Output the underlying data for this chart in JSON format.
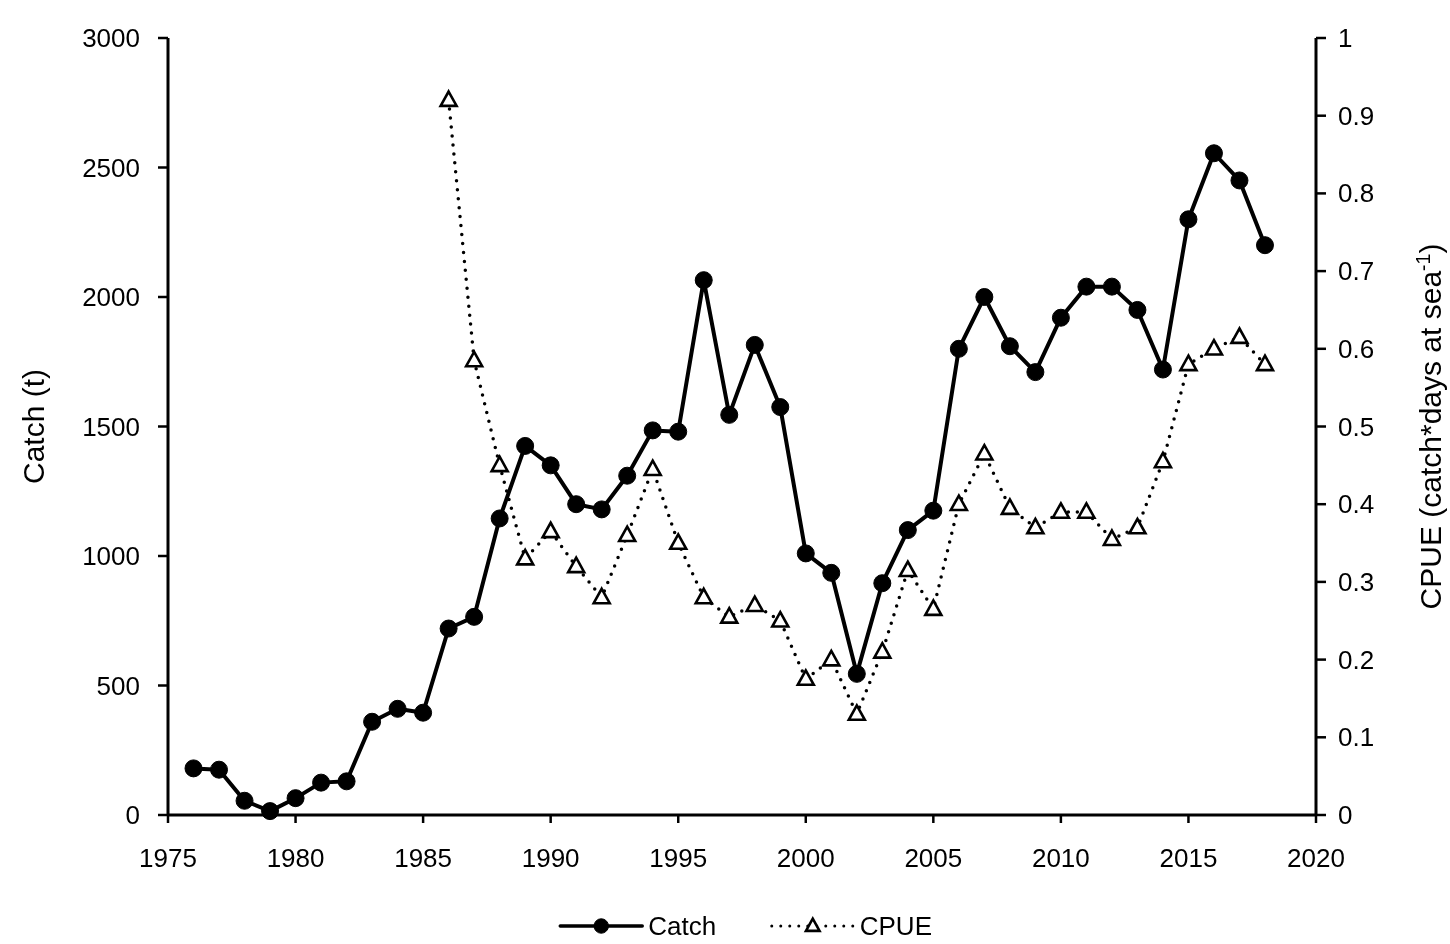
{
  "chart_data": {
    "type": "line",
    "ylabel": "Catch (t)",
    "y2label": "CPUE (catch*days at sea$^{-1}$)",
    "x": [
      1976,
      1977,
      1978,
      1979,
      1980,
      1981,
      1982,
      1983,
      1984,
      1985,
      1986,
      1987,
      1988,
      1989,
      1990,
      1991,
      1992,
      1993,
      1994,
      1995,
      1996,
      1997,
      1998,
      1999,
      2000,
      2001,
      2002,
      2003,
      2004,
      2005,
      2006,
      2007,
      2008,
      2009,
      2010,
      2011,
      2012,
      2013,
      2014,
      2015,
      2016,
      2017,
      2018
    ],
    "series": [
      {
        "name": "Catch",
        "color": "#000000",
        "marker": "circle",
        "line_style": "solid",
        "values": [
          180,
          175,
          55,
          15,
          65,
          125,
          130,
          360,
          410,
          395,
          720,
          765,
          1145,
          1425,
          1350,
          1200,
          1180,
          1310,
          1485,
          1480,
          2065,
          1545,
          1815,
          1575,
          1010,
          935,
          545,
          895,
          1100,
          1175,
          1800,
          2000,
          1810,
          1710,
          1920,
          2040,
          2040,
          1950,
          1720,
          2300,
          2555,
          2450,
          2200
        ]
      },
      {
        "name": "CPUE",
        "color": "#000000",
        "marker": "triangle",
        "line_style": "dotted",
        "axis": "y2",
        "values": [
          null,
          null,
          null,
          null,
          null,
          null,
          null,
          null,
          null,
          null,
          0.92,
          0.585,
          0.45,
          0.33,
          0.365,
          0.32,
          0.28,
          0.36,
          0.445,
          0.35,
          0.28,
          0.255,
          0.27,
          0.25,
          0.175,
          0.2,
          0.13,
          0.21,
          0.315,
          0.265,
          0.4,
          0.465,
          0.395,
          0.37,
          0.39,
          0.39,
          0.355,
          0.37,
          0.455,
          0.58,
          0.6,
          0.615,
          0.58
        ]
      }
    ],
    "xlim": [
      1975,
      2020
    ],
    "xticks": [
      1975,
      1980,
      1985,
      1990,
      1995,
      2000,
      2005,
      2010,
      2015,
      2020
    ],
    "ylim": [
      0,
      3000
    ],
    "yticks": [
      0,
      500,
      1000,
      1500,
      2000,
      2500,
      3000
    ],
    "y2lim": [
      0,
      1
    ],
    "y2ticks": [
      0,
      0.1,
      0.2,
      0.3,
      0.4,
      0.5,
      0.6,
      0.7,
      0.8,
      0.9,
      1
    ],
    "legend": "bottom"
  }
}
